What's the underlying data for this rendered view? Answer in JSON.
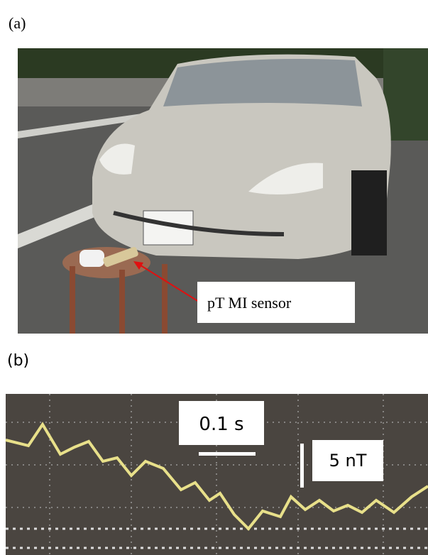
{
  "panels": [
    {
      "label": "(a)",
      "annotation": "pT MI sensor"
    },
    {
      "label": "(b)",
      "time_scale": "0.1 s",
      "field_scale": "5 nT"
    }
  ]
}
